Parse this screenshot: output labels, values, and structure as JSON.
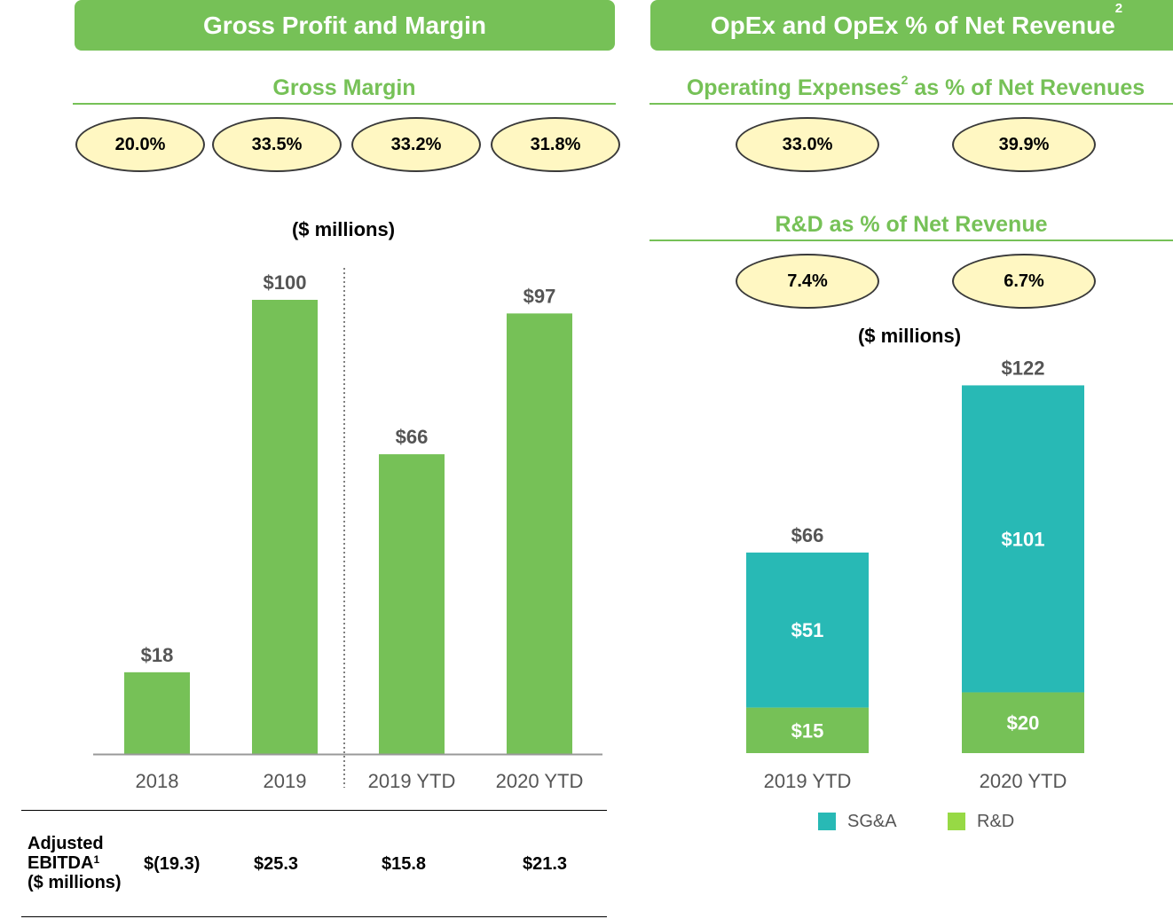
{
  "left": {
    "header": "Gross Profit and Margin",
    "subheader": "Gross Margin",
    "margins": [
      "20.0%",
      "33.5%",
      "33.2%",
      "31.8%"
    ],
    "unit_label": "($ millions)",
    "ebitda": {
      "label_line1": "Adjusted",
      "label_line2": "EBITDA",
      "label_sup": "1",
      "label_line3": "($ millions)",
      "values": [
        "$(19.3)",
        "$25.3",
        "$15.8",
        "$21.3"
      ]
    }
  },
  "right": {
    "header": "OpEx and OpEx % of Net Revenue",
    "header_sup": "2",
    "subheader1_a": "Operating Expenses",
    "subheader1_sup": "2",
    "subheader1_b": " as % of Net Revenues",
    "opex_pct": [
      "33.0%",
      "39.9%"
    ],
    "subheader2": "R&D as % of Net Revenue",
    "rd_pct": [
      "7.4%",
      "6.7%"
    ],
    "unit_label": "($ millions)"
  },
  "chart_data": [
    {
      "type": "bar",
      "title": "",
      "categories": [
        "2018",
        "2019",
        "2019 YTD",
        "2020 YTD"
      ],
      "values": [
        18,
        100,
        66,
        97
      ],
      "data_labels": [
        "$18",
        "$100",
        "$66",
        "$97"
      ],
      "ylabel": "($ millions)",
      "ylim": [
        0,
        100
      ],
      "grid": false,
      "divider_after_index": 1,
      "color": "#76c157"
    },
    {
      "type": "bar",
      "stacked": true,
      "categories": [
        "2019 YTD",
        "2020 YTD"
      ],
      "series": [
        {
          "name": "R&D",
          "values": [
            15,
            20
          ],
          "labels": [
            "$15",
            "$20"
          ],
          "color": "#76c157",
          "legend_color": "#97d945"
        },
        {
          "name": "SG&A",
          "values": [
            51,
            101
          ],
          "labels": [
            "$51",
            "$101"
          ],
          "color": "#28b9b5"
        }
      ],
      "totals": [
        "$66",
        "$122"
      ],
      "legend": [
        "SG&A",
        "R&D"
      ],
      "legend_placement": "bottom",
      "ylim": [
        0,
        122
      ],
      "grid": false
    }
  ]
}
